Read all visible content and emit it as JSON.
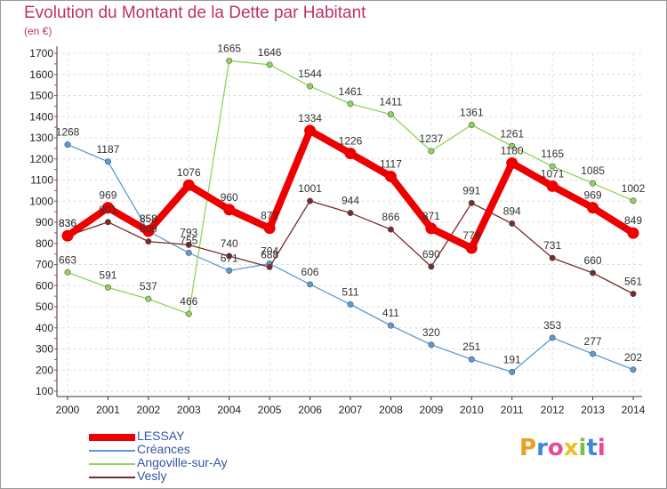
{
  "title": "Evolution du Montant de la Dette par Habitant",
  "subtitle": "(en €)",
  "logo": {
    "text": "Proxiti",
    "colors": [
      "#e8a020",
      "#3a8ad6",
      "#e84a9a",
      "#f0c020",
      "#7ac03a",
      "#3a8ad6",
      "#e84a9a"
    ]
  },
  "chart_data": {
    "type": "line",
    "x": [
      "2000",
      "2001",
      "2002",
      "2003",
      "2004",
      "2005",
      "2006",
      "2007",
      "2008",
      "2009",
      "2010",
      "2011",
      "2012",
      "2013",
      "2014"
    ],
    "ylim": [
      100,
      1700
    ],
    "yticks": [
      100,
      200,
      300,
      400,
      500,
      600,
      700,
      800,
      900,
      1000,
      1100,
      1200,
      1300,
      1400,
      1500,
      1600,
      1700
    ],
    "grid": true,
    "legend": "bottom-left",
    "series": [
      {
        "name": "Créances",
        "color": "#5b9bd5",
        "values": [
          1268,
          1187,
          858,
          755,
          671,
          704,
          606,
          511,
          411,
          320,
          251,
          191,
          353,
          277,
          202
        ]
      },
      {
        "name": "Angoville-sur-Ay",
        "color": "#8fd45a",
        "values": [
          663,
          591,
          537,
          466,
          1665,
          1646,
          1544,
          1461,
          1411,
          1237,
          1361,
          1261,
          1165,
          1085,
          1002
        ]
      },
      {
        "name": "Vesly",
        "color": "#7a2a2a",
        "values": [
          836,
          901,
          809,
          793,
          740,
          688,
          1001,
          944,
          866,
          690,
          991,
          894,
          731,
          660,
          561
        ]
      },
      {
        "name": "LESSAY",
        "color": "#ee0000",
        "values": [
          836,
          969,
          858,
          1076,
          960,
          872,
          1334,
          1226,
          1117,
          871,
          778,
          1180,
          1071,
          969,
          849
        ]
      }
    ]
  }
}
